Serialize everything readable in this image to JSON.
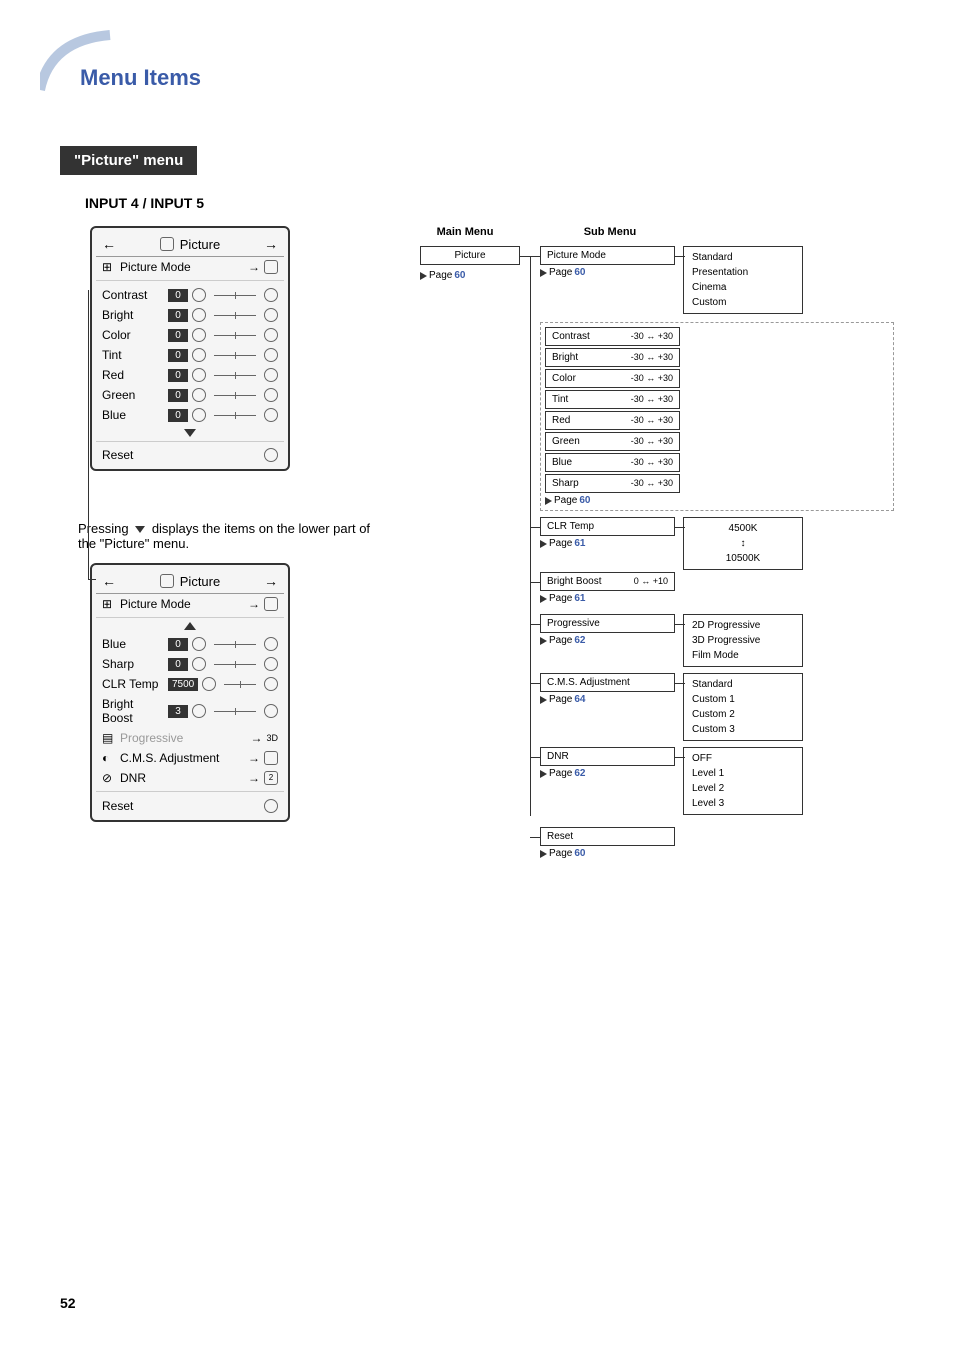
{
  "page_title": "Menu Items",
  "menu_section": "\"Picture\" menu",
  "input_label": "INPUT 4 / INPUT 5",
  "page_number": "52",
  "caption": {
    "prefix": "Pressing ",
    "suffix": " displays the items on the lower part of the \"Picture\" menu."
  },
  "osd1": {
    "header_title": "Picture",
    "picture_mode": "Picture Mode",
    "rows": [
      {
        "label": "Contrast",
        "value": "0"
      },
      {
        "label": "Bright",
        "value": "0"
      },
      {
        "label": "Color",
        "value": "0"
      },
      {
        "label": "Tint",
        "value": "0"
      },
      {
        "label": "Red",
        "value": "0"
      },
      {
        "label": "Green",
        "value": "0"
      },
      {
        "label": "Blue",
        "value": "0"
      }
    ],
    "reset": "Reset"
  },
  "osd2": {
    "header_title": "Picture",
    "picture_mode": "Picture Mode",
    "rows": [
      {
        "label": "Blue",
        "value": "0"
      },
      {
        "label": "Sharp",
        "value": "0"
      },
      {
        "label": "CLR Temp",
        "value": "7500"
      },
      {
        "label": "Bright Boost",
        "value": "3"
      }
    ],
    "progressive": "Progressive",
    "cms": "C.M.S. Adjustment",
    "dnr": "DNR",
    "reset": "Reset"
  },
  "tree": {
    "headers": {
      "main": "Main Menu",
      "sub": "Sub Menu"
    },
    "main": {
      "label": "Picture",
      "page": "60"
    },
    "picture_mode": {
      "label": "Picture Mode",
      "page": "60",
      "options": [
        "Standard",
        "Presentation",
        "Cinema",
        "Custom"
      ]
    },
    "adjustments": [
      {
        "label": "Contrast",
        "range": "-30 ↔ +30"
      },
      {
        "label": "Bright",
        "range": "-30 ↔ +30"
      },
      {
        "label": "Color",
        "range": "-30 ↔ +30"
      },
      {
        "label": "Tint",
        "range": "-30 ↔ +30"
      },
      {
        "label": "Red",
        "range": "-30 ↔ +30"
      },
      {
        "label": "Green",
        "range": "-30 ↔ +30"
      },
      {
        "label": "Blue",
        "range": "-30 ↔ +30"
      },
      {
        "label": "Sharp",
        "range": "-30 ↔ +30"
      }
    ],
    "adjustments_page": "60",
    "clr_temp": {
      "label": "CLR Temp",
      "page": "61",
      "options_top": "4500K",
      "options_bottom": "10500K"
    },
    "bright_boost": {
      "label": "Bright Boost",
      "range": "0 ↔ +10",
      "page": "61"
    },
    "progressive": {
      "label": "Progressive",
      "page": "62",
      "options": [
        "2D Progressive",
        "3D Progressive",
        "Film Mode"
      ]
    },
    "cms": {
      "label": "C.M.S. Adjustment",
      "page": "64",
      "options": [
        "Standard",
        "Custom 1",
        "Custom 2",
        "Custom 3"
      ]
    },
    "dnr": {
      "label": "DNR",
      "page": "62",
      "options": [
        "OFF",
        "Level 1",
        "Level 2",
        "Level 3"
      ]
    },
    "reset": {
      "label": "Reset",
      "page": "60"
    },
    "page_prefix": "Page "
  }
}
